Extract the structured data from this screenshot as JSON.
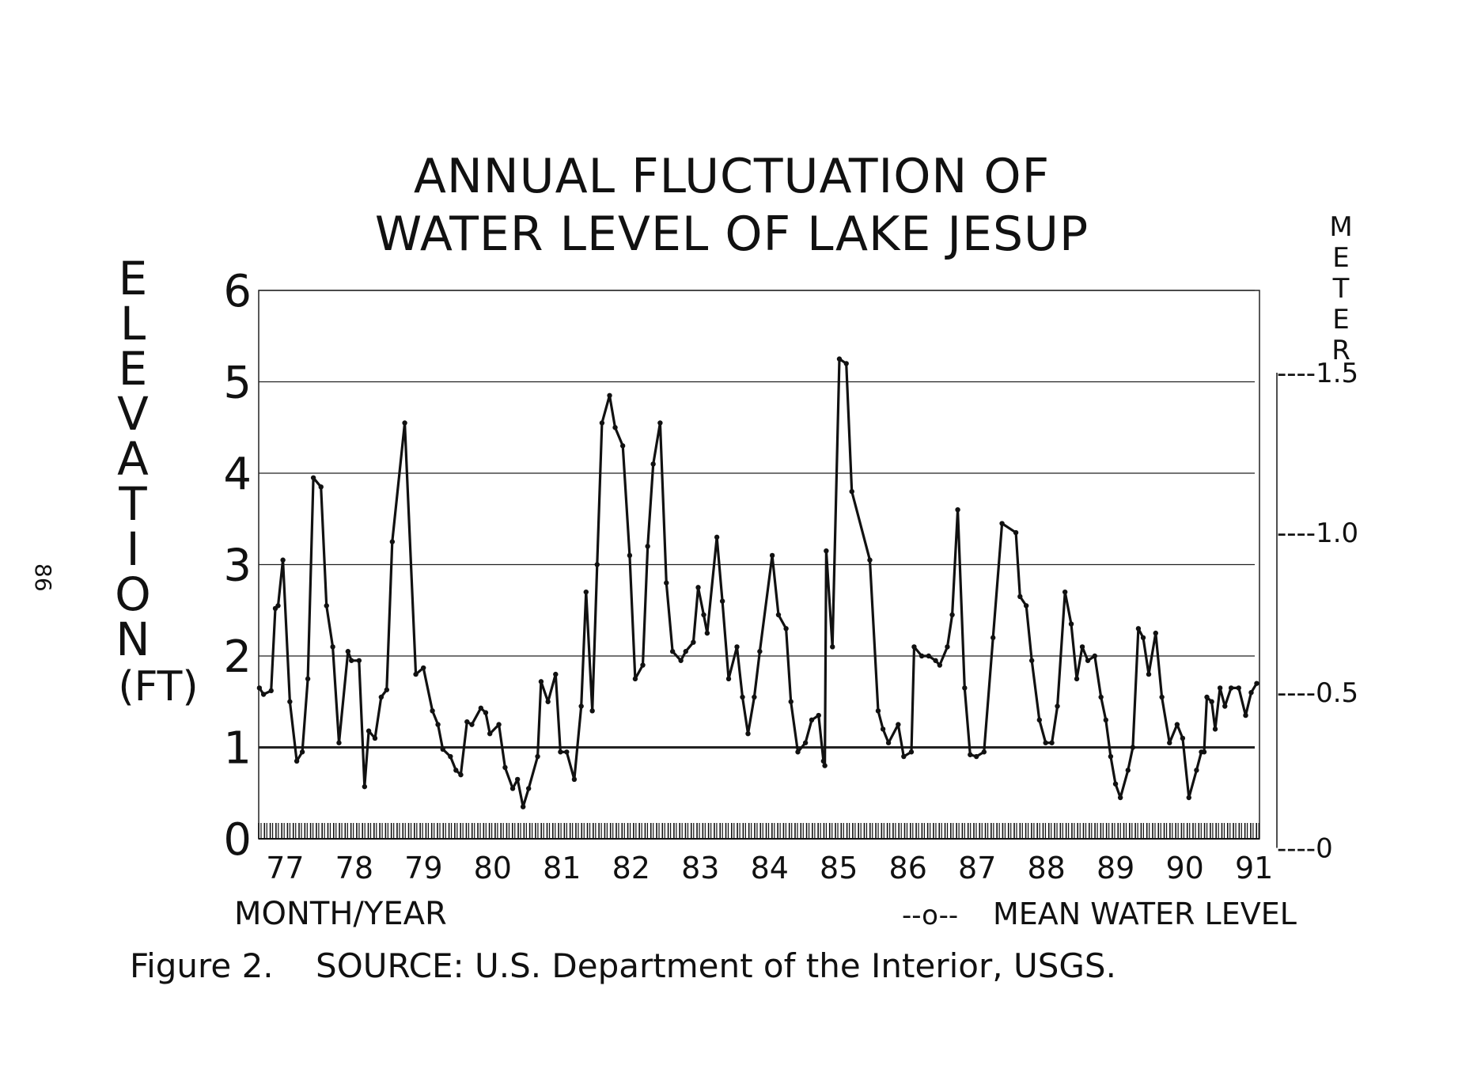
{
  "page_number": "86",
  "caption": "Figure 2.    SOURCE: U.S. Department of the Interior, USGS.",
  "chart_data": {
    "type": "line",
    "title": [
      "ANNUAL FLUCTUATION OF",
      "WATER LEVEL OF LAKE JESUP"
    ],
    "xlabel": "MONTH/YEAR",
    "ylabel_letters": [
      "E",
      "L",
      "E",
      "V",
      "A",
      "T",
      "I",
      "O",
      "N",
      "(FT)"
    ],
    "ylabel": "ELEVATION (FT)",
    "y2label_letters": [
      "M",
      "E",
      "T",
      "E",
      "R"
    ],
    "y2label": "METER",
    "legend": {
      "marker": "--o--",
      "label": "MEAN WATER LEVEL",
      "placement": "bottom-right"
    },
    "xlim": [
      76.71,
      91.17
    ],
    "ylim": [
      0,
      6
    ],
    "grid": true,
    "x_tick_labels": [
      {
        "year": 77,
        "label": "77"
      },
      {
        "year": 78,
        "label": "78"
      },
      {
        "year": 79,
        "label": "79"
      },
      {
        "year": 80,
        "label": "80"
      },
      {
        "year": 81,
        "label": "81"
      },
      {
        "year": 82,
        "label": "82"
      },
      {
        "year": 83,
        "label": "83"
      },
      {
        "year": 84,
        "label": "84"
      },
      {
        "year": 85,
        "label": "85"
      },
      {
        "year": 86,
        "label": "86"
      },
      {
        "year": 87,
        "label": "87"
      },
      {
        "year": 88,
        "label": "88"
      },
      {
        "year": 89,
        "label": "89"
      },
      {
        "year": 90,
        "label": "90"
      },
      {
        "year": 91,
        "label": "91"
      }
    ],
    "y_ticks": [
      {
        "value": 0,
        "label": "0"
      },
      {
        "value": 1,
        "label": "1"
      },
      {
        "value": 2,
        "label": "2"
      },
      {
        "value": 3,
        "label": "3"
      },
      {
        "value": 4,
        "label": "4"
      },
      {
        "value": 5,
        "label": "5"
      },
      {
        "value": 6,
        "label": "6"
      }
    ],
    "reference_line": {
      "value": 1,
      "note": "heavy line at 1 ft"
    },
    "y2_ticks": [
      {
        "meters": 0,
        "label": "----0",
        "ft_equivalent": -0.1
      },
      {
        "meters": 0.5,
        "label": "----0.5",
        "ft_equivalent": 1.6
      },
      {
        "meters": 1.0,
        "label": "----1.0",
        "ft_equivalent": 3.35
      },
      {
        "meters": 1.5,
        "label": "----1.5",
        "ft_equivalent": 5.1
      }
    ],
    "series": [
      {
        "name": "Mean water level",
        "x": [
          76.72,
          76.78,
          76.89,
          76.95,
          76.99,
          77.06,
          77.16,
          77.26,
          77.34,
          77.42,
          77.5,
          77.61,
          77.69,
          77.78,
          77.87,
          78.0,
          78.05,
          78.16,
          78.24,
          78.3,
          78.39,
          78.48,
          78.56,
          78.64,
          78.82,
          78.98,
          79.09,
          79.22,
          79.3,
          79.37,
          79.48,
          79.56,
          79.63,
          79.72,
          79.79,
          79.92,
          79.99,
          80.05,
          80.18,
          80.27,
          80.38,
          80.45,
          80.53,
          80.61,
          80.74,
          80.79,
          80.89,
          81.0,
          81.07,
          81.16,
          81.27,
          81.37,
          81.44,
          81.53,
          81.6,
          81.67,
          81.78,
          81.86,
          81.97,
          82.07,
          82.15,
          82.26,
          82.33,
          82.41,
          82.51,
          82.6,
          82.69,
          82.81,
          82.88,
          82.99,
          83.06,
          83.14,
          83.19,
          83.33,
          83.41,
          83.5,
          83.62,
          83.7,
          83.78,
          83.87,
          83.95,
          84.13,
          84.22,
          84.33,
          84.4,
          84.5,
          84.61,
          84.7,
          84.8,
          84.87,
          84.89,
          84.91,
          85.0,
          85.1,
          85.2,
          85.28,
          85.54,
          85.66,
          85.73,
          85.81,
          85.95,
          86.03,
          86.14,
          86.18,
          86.29,
          86.39,
          86.49,
          86.55,
          86.66,
          86.73,
          86.81,
          86.91,
          86.99,
          87.08,
          87.19,
          87.32,
          87.45,
          87.65,
          87.71,
          87.8,
          87.88,
          87.99,
          88.08,
          88.17,
          88.25,
          88.36,
          88.45,
          88.53,
          88.61,
          88.69,
          88.79,
          88.88,
          88.95,
          89.02,
          89.09,
          89.16,
          89.27,
          89.34,
          89.42,
          89.49,
          89.57,
          89.67,
          89.76,
          89.87,
          89.98,
          90.06,
          90.15,
          90.26,
          90.33,
          90.37,
          90.41,
          90.48,
          90.53,
          90.6,
          90.67,
          90.76,
          90.87,
          90.97,
          91.05,
          91.13
        ],
        "y": [
          1.65,
          1.58,
          1.62,
          2.52,
          2.55,
          3.05,
          1.5,
          0.85,
          0.95,
          1.75,
          3.95,
          3.85,
          2.55,
          2.1,
          1.05,
          2.05,
          1.95,
          1.95,
          0.57,
          1.18,
          1.1,
          1.55,
          1.63,
          3.25,
          4.55,
          1.8,
          1.87,
          1.4,
          1.25,
          0.98,
          0.9,
          0.75,
          0.7,
          1.28,
          1.25,
          1.43,
          1.38,
          1.15,
          1.25,
          0.78,
          0.55,
          0.65,
          0.35,
          0.55,
          0.9,
          1.72,
          1.5,
          1.8,
          0.95,
          0.95,
          0.65,
          1.45,
          2.7,
          1.4,
          3.0,
          4.55,
          4.85,
          4.5,
          4.3,
          3.1,
          1.75,
          1.9,
          3.2,
          4.1,
          4.55,
          2.8,
          2.05,
          1.95,
          2.05,
          2.15,
          2.75,
          2.45,
          2.25,
          3.3,
          2.6,
          1.75,
          2.1,
          1.55,
          1.15,
          1.55,
          2.05,
          3.1,
          2.45,
          2.3,
          1.5,
          0.95,
          1.05,
          1.3,
          1.35,
          0.85,
          0.8,
          3.15,
          2.1,
          5.25,
          5.2,
          3.8,
          3.05,
          1.4,
          1.2,
          1.05,
          1.25,
          0.9,
          0.95,
          2.1,
          2.0,
          2.0,
          1.95,
          1.9,
          2.1,
          2.45,
          3.6,
          1.65,
          0.92,
          0.9,
          0.95,
          2.2,
          3.45,
          3.35,
          2.65,
          2.55,
          1.95,
          1.3,
          1.05,
          1.05,
          1.45,
          2.7,
          2.35,
          1.75,
          2.1,
          1.95,
          2.0,
          1.55,
          1.3,
          0.9,
          0.6,
          0.45,
          0.75,
          1.0,
          2.3,
          2.2,
          1.8,
          2.25,
          1.55,
          1.05,
          1.25,
          1.1,
          0.45,
          0.75,
          0.95,
          0.95,
          1.55,
          1.5,
          1.2,
          1.65,
          1.45,
          1.65,
          1.65,
          1.35,
          1.6,
          1.7
        ]
      }
    ]
  }
}
